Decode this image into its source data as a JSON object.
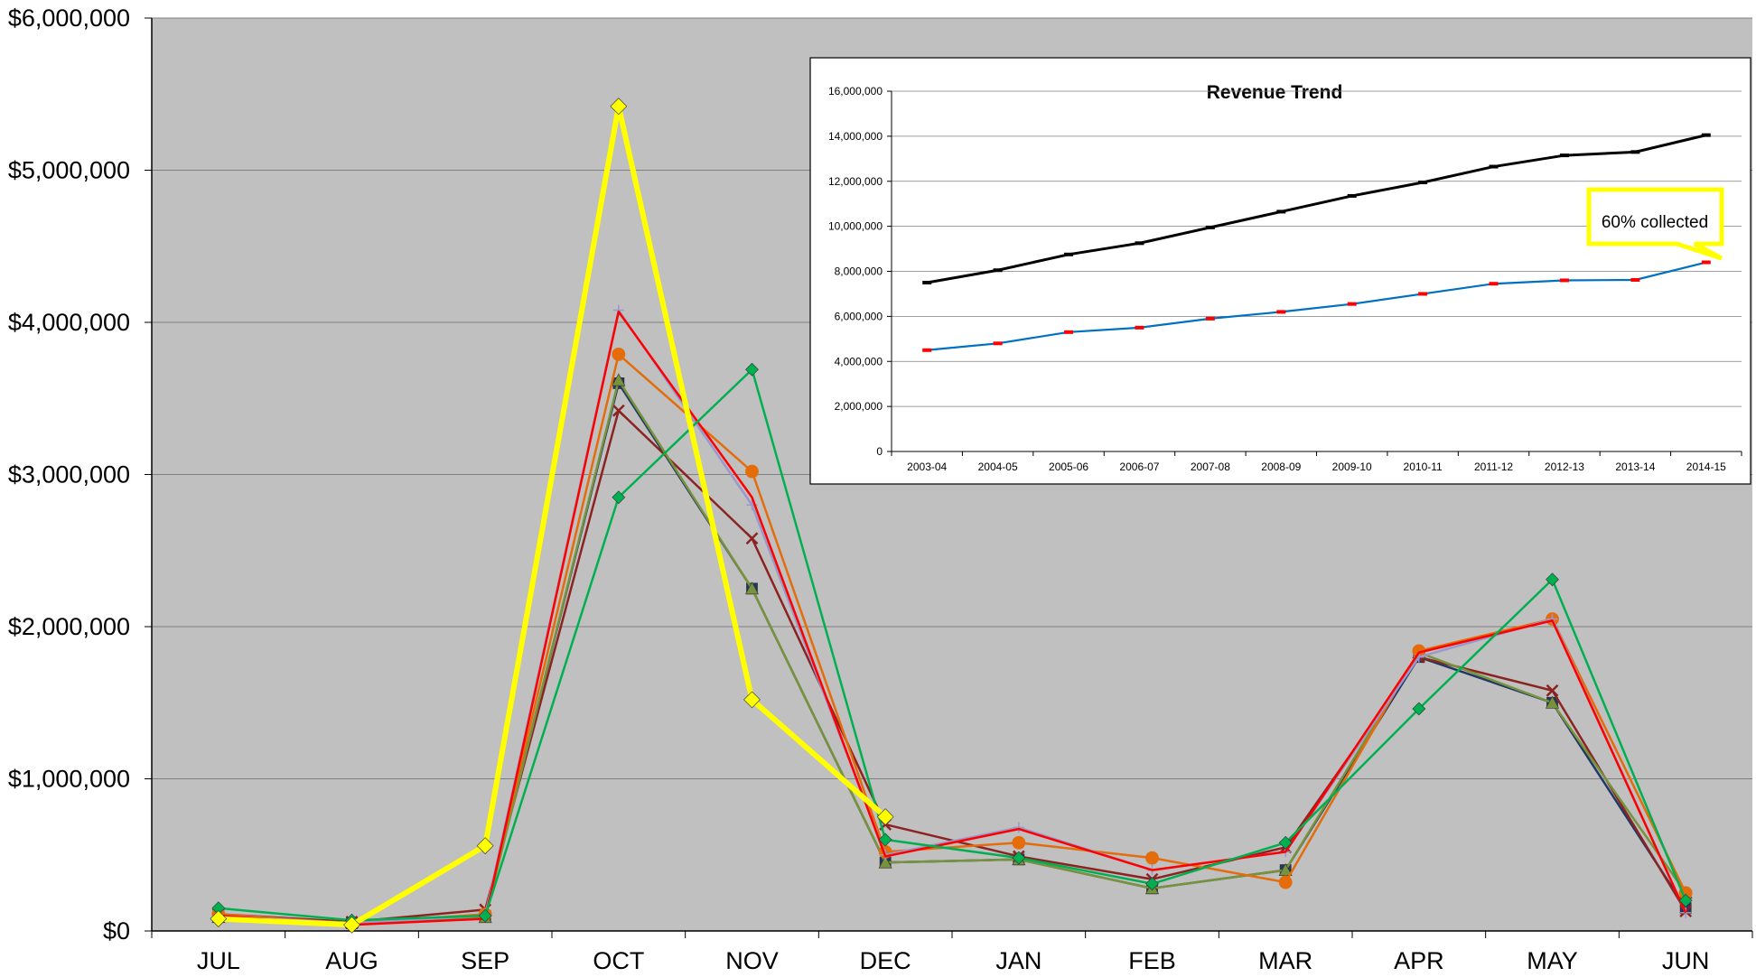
{
  "chart_data": [
    {
      "type": "line",
      "title": "",
      "xlabel": "",
      "ylabel": "",
      "categories": [
        "JUL",
        "AUG",
        "SEP",
        "OCT",
        "NOV",
        "DEC",
        "JAN",
        "FEB",
        "MAR",
        "APR",
        "MAY",
        "JUN"
      ],
      "ylim": [
        0,
        6000000
      ],
      "yticks": [
        0,
        1000000,
        2000000,
        3000000,
        4000000,
        5000000,
        6000000
      ],
      "ytick_labels": [
        "$0",
        "$1,000,000",
        "$2,000,000",
        "$3,000,000",
        "$4,000,000",
        "$5,000,000",
        "$6,000,000"
      ],
      "grid": true,
      "plot_background": "#c0c0c0",
      "series": [
        {
          "color": "#1f3864",
          "marker": "square",
          "values": [
            100000,
            50000,
            100000,
            3600000,
            2250000,
            450000,
            470000,
            280000,
            400000,
            1800000,
            1500000,
            150000
          ]
        },
        {
          "color": "#8b2323",
          "marker": "x",
          "values": [
            110000,
            60000,
            140000,
            3420000,
            2580000,
            700000,
            490000,
            340000,
            550000,
            1800000,
            1580000,
            130000
          ]
        },
        {
          "color": "#77933c",
          "marker": "triangle",
          "values": [
            90000,
            55000,
            90000,
            3620000,
            2250000,
            450000,
            470000,
            280000,
            400000,
            1830000,
            1500000,
            250000
          ]
        },
        {
          "color": "#e46c0a",
          "marker": "circle",
          "values": [
            110000,
            50000,
            110000,
            3790000,
            3020000,
            520000,
            580000,
            480000,
            320000,
            1840000,
            2050000,
            250000
          ]
        },
        {
          "color": "#9999cc",
          "marker": "plus",
          "values": [
            100000,
            50000,
            100000,
            4080000,
            2800000,
            500000,
            680000,
            400000,
            520000,
            1800000,
            2050000,
            120000
          ]
        },
        {
          "color": "#ff0000",
          "marker": "none",
          "values": [
            100000,
            40000,
            80000,
            4070000,
            2850000,
            490000,
            670000,
            400000,
            520000,
            1830000,
            2040000,
            120000
          ]
        },
        {
          "color": "#00b050",
          "marker": "diamond",
          "values": [
            150000,
            70000,
            100000,
            2850000,
            3690000,
            600000,
            480000,
            310000,
            580000,
            1460000,
            2310000,
            200000
          ]
        },
        {
          "color": "#ffff00",
          "marker": "diamond",
          "values": [
            80000,
            40000,
            560000,
            5420000,
            1520000,
            750000,
            null,
            null,
            null,
            null,
            null,
            null
          ]
        }
      ]
    },
    {
      "type": "line",
      "title": "Revenue Trend",
      "xlabel": "",
      "ylabel": "",
      "categories": [
        "2003-04",
        "2004-05",
        "2005-06",
        "2006-07",
        "2007-08",
        "2008-09",
        "2009-10",
        "2010-11",
        "2011-12",
        "2012-13",
        "2013-14",
        "2014-15"
      ],
      "ylim": [
        0,
        16000000
      ],
      "yticks": [
        0,
        2000000,
        4000000,
        6000000,
        8000000,
        10000000,
        12000000,
        14000000,
        16000000
      ],
      "ytick_labels": [
        "0",
        "2,000,000",
        "4,000,000",
        "6,000,000",
        "8,000,000",
        "10,000,000",
        "12,000,000",
        "14,000,000",
        "16,000,000"
      ],
      "grid": true,
      "series": [
        {
          "color": "#000000",
          "values": [
            7500000,
            8050000,
            8750000,
            9250000,
            9950000,
            10650000,
            11350000,
            11950000,
            12650000,
            13150000,
            13300000,
            14050000
          ]
        },
        {
          "color": "#0070c0",
          "values": [
            4500000,
            4800000,
            5300000,
            5500000,
            5900000,
            6200000,
            6550000,
            7000000,
            7450000,
            7600000,
            7620000,
            8400000
          ]
        }
      ],
      "annotation": {
        "text": "60% collected",
        "border_color": "#ffff00"
      }
    }
  ]
}
